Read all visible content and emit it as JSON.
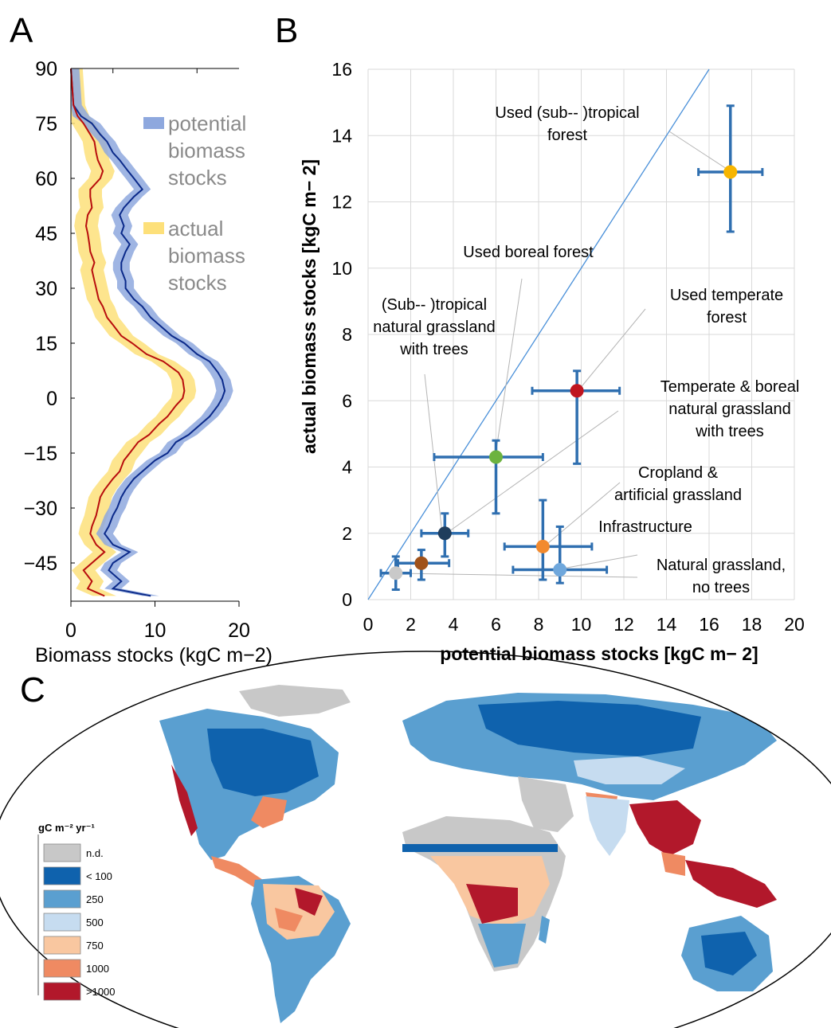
{
  "panels": {
    "a": "A",
    "b": "B",
    "c": "C"
  },
  "colors": {
    "potential_band": "#8ea8de",
    "potential_line": "#0b2a8a",
    "actual_band": "#fde07a",
    "actual_line": "#b80d0d",
    "scatter_error": "#2f6fb0",
    "one_to_one": "#4a90d9",
    "grid": "#d9d9d9"
  },
  "chart_data": [
    {
      "id": "A",
      "type": "line",
      "orientation": "latitude-profile",
      "xlabel": "Biomass stocks (kgC m−2)",
      "ylabel": "",
      "xlim": [
        0,
        20
      ],
      "ylim": [
        -55,
        90
      ],
      "x_ticks": [
        "0",
        "10",
        "20"
      ],
      "y_ticks": [
        "90",
        "75",
        "60",
        "45",
        "30",
        "15",
        "0",
        "−15",
        "−30",
        "−45"
      ],
      "y_tick_values": [
        90,
        75,
        60,
        45,
        30,
        15,
        0,
        -15,
        -30,
        -45
      ],
      "legend": [
        {
          "label_lines": [
            "potential",
            "biomass",
            "stocks"
          ],
          "color": "#8ea8de"
        },
        {
          "label_lines": [
            "actual",
            "biomass",
            "stocks"
          ],
          "color": "#fde07a"
        }
      ],
      "series": [
        {
          "name": "potential biomass stocks",
          "latitude": [
            90,
            80,
            77,
            75,
            72,
            70,
            67,
            65,
            62,
            60,
            57,
            55,
            52,
            50,
            47,
            45,
            42,
            40,
            37,
            35,
            32,
            30,
            27,
            25,
            22,
            20,
            17,
            15,
            12,
            10,
            7,
            5,
            2,
            0,
            -2,
            -5,
            -7,
            -10,
            -12,
            -15,
            -17,
            -20,
            -22,
            -25,
            -27,
            -30,
            -32,
            -35,
            -37,
            -40,
            -42,
            -45,
            -47,
            -50,
            -52,
            -54
          ],
          "values": [
            0,
            0.3,
            1.2,
            2.5,
            3.5,
            4.3,
            5,
            5.8,
            6.8,
            7.5,
            8.5,
            7.5,
            6.3,
            5.8,
            6.3,
            6.0,
            7.0,
            6.5,
            6.0,
            6.0,
            6.5,
            6.5,
            7.5,
            8.5,
            9.5,
            10.5,
            12.0,
            13.5,
            15,
            16.5,
            17.5,
            18,
            18.3,
            18,
            17.5,
            16.5,
            15.5,
            14,
            12.5,
            11.5,
            10,
            8.5,
            7.5,
            6.5,
            6.0,
            5.5,
            5.0,
            4.5,
            4.0,
            5.0,
            7.0,
            5.0,
            4.5,
            6.0,
            5.0,
            9.5
          ],
          "band_halfwidth": 1.0
        },
        {
          "name": "actual biomass stocks",
          "latitude": [
            90,
            80,
            77,
            75,
            72,
            70,
            67,
            65,
            62,
            60,
            57,
            55,
            52,
            50,
            47,
            45,
            42,
            40,
            37,
            35,
            32,
            30,
            27,
            25,
            22,
            20,
            17,
            15,
            12,
            10,
            7,
            5,
            2,
            0,
            -2,
            -5,
            -7,
            -10,
            -12,
            -15,
            -17,
            -20,
            -22,
            -25,
            -27,
            -30,
            -32,
            -35,
            -37,
            -40,
            -42,
            -45,
            -47,
            -50,
            -52,
            -54
          ],
          "values": [
            0,
            0.3,
            0.8,
            1.5,
            2.3,
            2.8,
            3.0,
            3.2,
            3.8,
            3.5,
            2.3,
            2.3,
            2.5,
            2.0,
            1.8,
            2.0,
            2.2,
            2.3,
            2.8,
            2.5,
            2.8,
            3.0,
            3.3,
            3.8,
            4.3,
            5.0,
            6.0,
            7.3,
            9.0,
            11.0,
            12.8,
            13.3,
            13.5,
            13.3,
            12.5,
            11.5,
            10.5,
            9.3,
            8.0,
            7.0,
            6.3,
            5.8,
            5.0,
            4.0,
            3.5,
            3.2,
            3.0,
            2.5,
            2.3,
            3.0,
            4.0,
            2.5,
            1.5,
            2.5,
            2.0,
            4.0
          ],
          "band_halfwidth": 1.4
        }
      ]
    },
    {
      "id": "B",
      "type": "scatter",
      "xlabel": "potential biomass stocks [kgC m− 2]",
      "ylabel": "actual biomass stocks [kgC m− 2]",
      "xlim": [
        0,
        20
      ],
      "ylim": [
        0,
        16
      ],
      "x_ticks": [
        "0",
        "2",
        "4",
        "6",
        "8",
        "10",
        "12",
        "14",
        "16",
        "18",
        "20"
      ],
      "y_ticks": [
        "0",
        "2",
        "4",
        "6",
        "8",
        "10",
        "12",
        "14",
        "16"
      ],
      "grid": true,
      "one_to_one_line": true,
      "points": [
        {
          "name": "Used (sub‐‐ )tropical forest",
          "label_lines": [
            "Used (sub‐‐ )tropical",
            "forest"
          ],
          "x": 17.0,
          "y": 12.9,
          "xerr": [
            15.5,
            18.5
          ],
          "yerr": [
            11.1,
            14.9
          ],
          "color": "#f7b500"
        },
        {
          "name": "Used temperate forest",
          "label_lines": [
            "Used temperate",
            "forest"
          ],
          "x": 9.8,
          "y": 6.3,
          "xerr": [
            7.7,
            11.8
          ],
          "yerr": [
            4.1,
            6.9
          ],
          "color": "#c0151f"
        },
        {
          "name": "Used boreal forest",
          "label_lines": [
            "Used boreal forest"
          ],
          "x": 6.0,
          "y": 4.3,
          "xerr": [
            3.1,
            8.2
          ],
          "yerr": [
            2.6,
            4.8
          ],
          "color": "#6db33f"
        },
        {
          "name": "Temperate & boreal natural grassland with trees",
          "label_lines": [
            "Temperate & boreal",
            "natural grassland",
            "with trees"
          ],
          "x": 3.6,
          "y": 2.0,
          "xerr": [
            2.5,
            4.7
          ],
          "yerr": [
            1.3,
            2.6
          ],
          "color": "#1f3d5c"
        },
        {
          "name": "(Sub‐‐ )tropical natural grassland with trees",
          "label_lines": [
            "(Sub‐‐ )tropical",
            "natural grassland",
            "with trees"
          ],
          "x": 2.5,
          "y": 1.1,
          "xerr": [
            1.4,
            3.8
          ],
          "yerr": [
            0.6,
            1.5
          ],
          "color": "#a0521a"
        },
        {
          "name": "Cropland & artificial grassland",
          "label_lines": [
            "Cropland &",
            "artificial grassland"
          ],
          "x": 8.2,
          "y": 1.6,
          "xerr": [
            6.4,
            10.5
          ],
          "yerr": [
            0.6,
            3.0
          ],
          "color": "#f28a2e"
        },
        {
          "name": "Infrastructure",
          "label_lines": [
            "Infrastructure"
          ],
          "x": 1.3,
          "y": 0.8,
          "xerr": [
            0.6,
            2.0
          ],
          "yerr": [
            0.3,
            1.3
          ],
          "color": "#c9c9c9"
        },
        {
          "name": "Natural grassland, no trees",
          "label_lines": [
            "Natural grassland,",
            "no trees"
          ],
          "x": 9.0,
          "y": 0.9,
          "xerr": [
            6.8,
            11.2
          ],
          "yerr": [
            0.5,
            2.2
          ],
          "color": "#6fa7dc"
        }
      ]
    },
    {
      "id": "C",
      "type": "heatmap",
      "subtype": "world-map",
      "legend_title": "gC m⁻² yr⁻¹",
      "legend": [
        {
          "label": "n.d.",
          "color": "#c8c8c8"
        },
        {
          "label": "< 100",
          "color": "#0f62ad"
        },
        {
          "label": "250",
          "color": "#5a9fd0"
        },
        {
          "label": "500",
          "color": "#c6dcf0"
        },
        {
          "label": "750",
          "color": "#f9c7a0"
        },
        {
          "label": "1000",
          "color": "#ef8a62"
        },
        {
          "label": ">1000",
          "color": "#b2182b"
        }
      ]
    }
  ]
}
